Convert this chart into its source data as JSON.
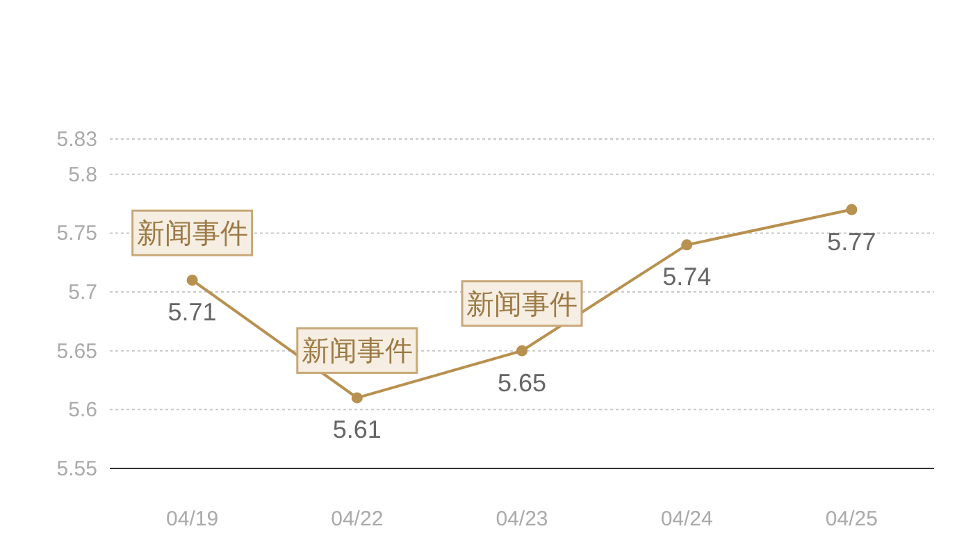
{
  "chart_data": {
    "type": "line",
    "categories": [
      "04/19",
      "04/22",
      "04/23",
      "04/24",
      "04/25"
    ],
    "series": [
      {
        "color": "#b8904f",
        "values": [
          5.71,
          5.61,
          5.65,
          5.74,
          5.77
        ]
      }
    ],
    "ylim": [
      5.55,
      5.83
    ],
    "yticks": [
      5.55,
      5.6,
      5.65,
      5.7,
      5.75,
      5.8,
      5.83
    ],
    "grid": "y",
    "data_labels": true,
    "marker": "circle",
    "annotations": [
      {
        "text": "新闻事件",
        "x": "04/19",
        "y": 5.71
      },
      {
        "text": "新闻事件",
        "x": "04/22",
        "y": 5.61
      },
      {
        "text": "新闻事件",
        "x": "04/23",
        "y": 5.65
      }
    ]
  }
}
